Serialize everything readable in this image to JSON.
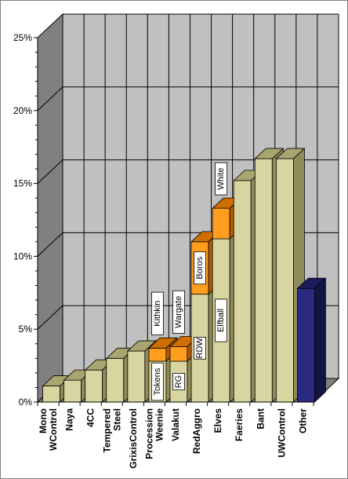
{
  "chart_data": {
    "type": "bar",
    "subtype": "3d-stacked-column",
    "ylim": [
      0,
      25
    ],
    "yticks": [
      "0%",
      "5%",
      "10%",
      "15%",
      "20%",
      "25%"
    ],
    "grid": true,
    "categories": [
      [
        "Mono",
        "WControl"
      ],
      [
        "Naya"
      ],
      [
        "4CC"
      ],
      [
        "Tempered",
        "Steel"
      ],
      [
        "GrixisControl"
      ],
      [
        "Procession",
        "Weenie"
      ],
      [
        "Valakut"
      ],
      [
        "RedAggro"
      ],
      [
        "Elves"
      ],
      [
        "Faeries"
      ],
      [
        "Bant"
      ],
      [
        "UWControl"
      ],
      [
        "Other"
      ]
    ],
    "bars": [
      {
        "segments": [
          {
            "value": 1.1,
            "label": ""
          }
        ]
      },
      {
        "segments": [
          {
            "value": 1.5,
            "label": ""
          }
        ]
      },
      {
        "segments": [
          {
            "value": 2.2,
            "label": ""
          }
        ]
      },
      {
        "segments": [
          {
            "value": 3.0,
            "label": ""
          }
        ]
      },
      {
        "segments": [
          {
            "value": 3.5,
            "label": ""
          }
        ]
      },
      {
        "segments": [
          {
            "value": 2.8,
            "label": "Tokens"
          },
          {
            "value": 0.9,
            "label": "Kithkin"
          }
        ]
      },
      {
        "segments": [
          {
            "value": 2.8,
            "label": "RG"
          },
          {
            "value": 1.0,
            "label": "Wargate"
          }
        ]
      },
      {
        "segments": [
          {
            "value": 7.4,
            "label": "RDW"
          },
          {
            "value": 3.6,
            "label": "Boros"
          }
        ]
      },
      {
        "segments": [
          {
            "value": 11.2,
            "label": "Elfball"
          },
          {
            "value": 2.1,
            "label": "White"
          }
        ]
      },
      {
        "segments": [
          {
            "value": 15.2,
            "label": ""
          }
        ]
      },
      {
        "segments": [
          {
            "value": 16.7,
            "label": ""
          }
        ]
      },
      {
        "segments": [
          {
            "value": 16.7,
            "label": ""
          }
        ]
      },
      {
        "segments": [
          {
            "value": 7.8,
            "label": ""
          }
        ]
      }
    ],
    "colors": {
      "plot_wall": "#c0c0c0",
      "left_wall": "#808080",
      "floor": "#808080",
      "grid": "#000000",
      "bar_front": "#d9d5a1",
      "bar_top": "#a9a56f",
      "bar_side": "#8f8b5b",
      "overlay_front": "#ff9d1f",
      "overlay_top": "#cc6f00",
      "overlay_side": "#b05e00",
      "other_front": "#2a2a80",
      "other_top": "#1c1c5c",
      "other_side": "#151545"
    }
  }
}
